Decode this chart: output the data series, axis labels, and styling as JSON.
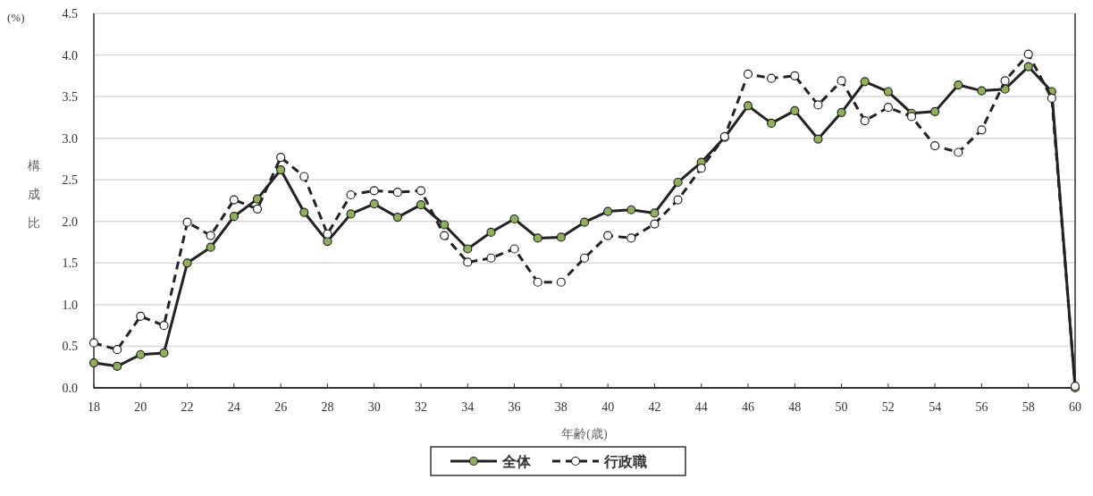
{
  "chart_data": {
    "type": "line",
    "xlabel": "年齢(歳)",
    "ylabel": "構成比",
    "annotations": [
      "(%)"
    ],
    "x": [
      18,
      19,
      20,
      21,
      22,
      23,
      24,
      25,
      26,
      27,
      28,
      29,
      30,
      31,
      32,
      33,
      34,
      35,
      36,
      37,
      38,
      39,
      40,
      41,
      42,
      43,
      44,
      45,
      46,
      47,
      48,
      49,
      50,
      51,
      52,
      53,
      54,
      55,
      56,
      57,
      58,
      59,
      60
    ],
    "xlim": [
      18,
      60
    ],
    "xticks": [
      18,
      20,
      22,
      24,
      26,
      28,
      30,
      32,
      34,
      36,
      38,
      40,
      42,
      44,
      46,
      48,
      50,
      52,
      54,
      56,
      58,
      60
    ],
    "ylim": [
      0,
      4.5
    ],
    "yticks": [
      {
        "value": 0,
        "label": "0.0"
      },
      {
        "value": 0.5,
        "label": "0.5"
      },
      {
        "value": 1,
        "label": "1.0"
      },
      {
        "value": 1.5,
        "label": "1.5"
      },
      {
        "value": 2,
        "label": "2.0"
      },
      {
        "value": 2.5,
        "label": "2.5"
      },
      {
        "value": 3,
        "label": "3.0"
      },
      {
        "value": 3.5,
        "label": "3.5"
      },
      {
        "value": 4,
        "label": "4.0"
      },
      {
        "value": 4.5,
        "label": "4.5"
      }
    ],
    "grid": "y",
    "legend": "bottom",
    "marker": "circle",
    "series": [
      {
        "name": "全体",
        "color": "#8fb05a",
        "line_style": "solid",
        "values": [
          0.3,
          0.26,
          0.4,
          0.42,
          1.5,
          1.69,
          2.06,
          2.27,
          2.62,
          2.11,
          1.76,
          2.09,
          2.21,
          2.05,
          2.2,
          1.96,
          1.67,
          1.87,
          2.03,
          1.8,
          1.81,
          1.99,
          2.12,
          2.14,
          2.1,
          2.47,
          2.71,
          3.01,
          3.39,
          3.18,
          3.33,
          2.99,
          3.31,
          3.68,
          3.56,
          3.3,
          3.32,
          3.64,
          3.57,
          3.59,
          3.86,
          3.56,
          0.0
        ]
      },
      {
        "name": "行政職",
        "color": "#ffffff",
        "line_style": "dashed",
        "values": [
          0.54,
          0.46,
          0.86,
          0.75,
          1.99,
          1.83,
          2.26,
          2.15,
          2.77,
          2.54,
          1.85,
          2.32,
          2.37,
          2.35,
          2.37,
          1.83,
          1.51,
          1.56,
          1.67,
          1.27,
          1.27,
          1.56,
          1.83,
          1.8,
          1.97,
          2.26,
          2.64,
          3.02,
          3.77,
          3.72,
          3.75,
          3.4,
          3.69,
          3.21,
          3.37,
          3.26,
          2.91,
          2.83,
          3.1,
          3.69,
          4.01,
          3.48,
          0.02
        ]
      }
    ]
  }
}
